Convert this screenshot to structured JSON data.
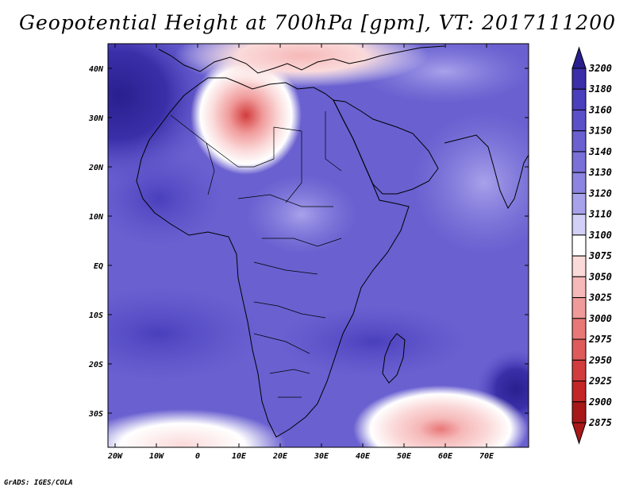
{
  "title": "Geopotential Height at 700hPa [gpm], VT: 2017111200",
  "credit": "GrADS: IGES/COLA",
  "axes": {
    "x_ticks": [
      "20W",
      "10W",
      "0",
      "10E",
      "20E",
      "30E",
      "40E",
      "50E",
      "60E",
      "70E"
    ],
    "y_ticks": [
      "40N",
      "30N",
      "20N",
      "10N",
      "EQ",
      "10S",
      "20S",
      "30S"
    ]
  },
  "colorbar": {
    "labels": [
      "3200",
      "3180",
      "3160",
      "3150",
      "3140",
      "3130",
      "3120",
      "3110",
      "3100",
      "3075",
      "3050",
      "3025",
      "3000",
      "2975",
      "2950",
      "2925",
      "2900",
      "2875"
    ],
    "colors": [
      "#2a1f8f",
      "#3a2fa8",
      "#4a3fbc",
      "#5a50c8",
      "#6a60d0",
      "#7a70d8",
      "#8c84e0",
      "#a8a2ea",
      "#d2d0f6",
      "#ffffff",
      "#fbdada",
      "#f6b8b8",
      "#f09a9a",
      "#e87878",
      "#df5a5a",
      "#d23c3c",
      "#c22626",
      "#a81818"
    ]
  },
  "map": {
    "fill_blue": "#6f68d6",
    "coast_color": "#000000"
  }
}
